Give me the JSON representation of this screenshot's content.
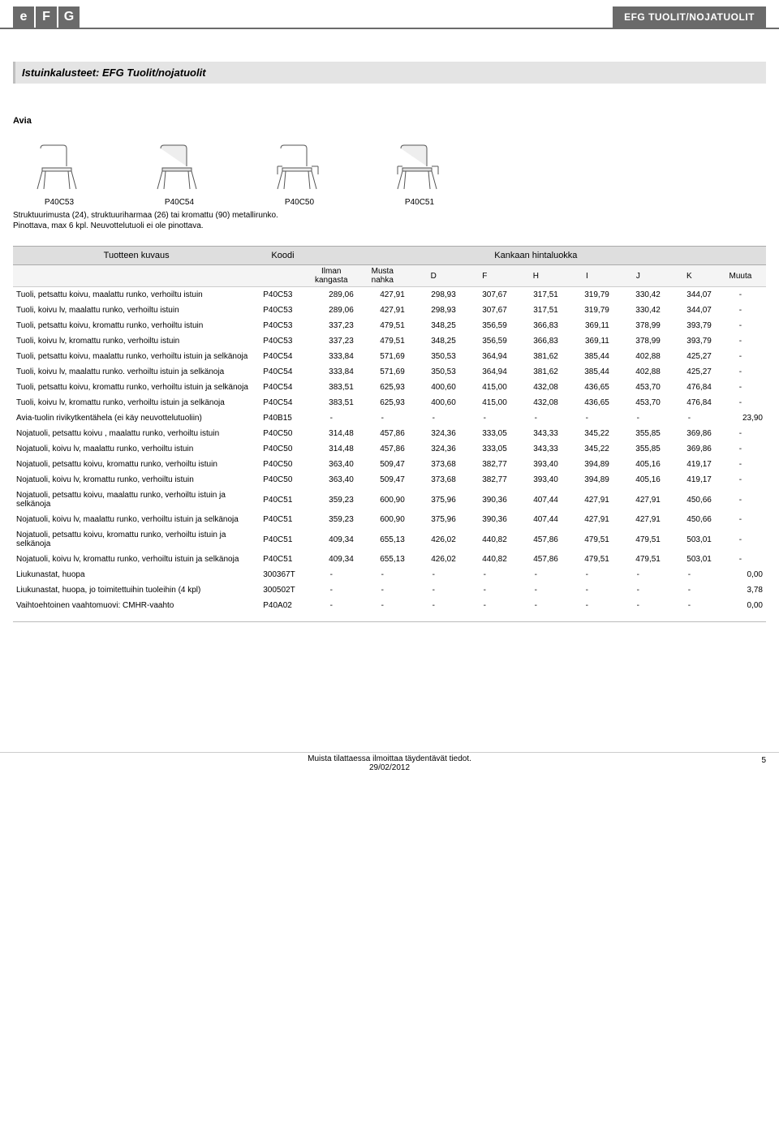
{
  "header": {
    "logo_letters": [
      "e",
      "F",
      "G"
    ],
    "category_label": "EFG TUOLIT/NOJATUOLIT"
  },
  "title": "Istuinkalusteet: EFG Tuolit/nojatuolit",
  "subtitle": "Avia",
  "chair_codes": [
    "P40C53",
    "P40C54",
    "P40C50",
    "P40C51"
  ],
  "note_line1": "Struktuurimusta (24), struktuuriharmaa (26) tai kromattu (90) metallirunko.",
  "note_line2": "Pinottava, max 6 kpl. Neuvottelutuoli ei ole pinottava.",
  "table": {
    "h_desc": "Tuotteen kuvaus",
    "h_code": "Koodi",
    "h_group": "Kankaan hintaluokka",
    "sub": [
      "Ilman kangasta",
      "Musta nahka",
      "D",
      "F",
      "H",
      "I",
      "J",
      "K",
      "Muuta"
    ]
  },
  "rows": [
    {
      "desc": "Tuoli, petsattu koivu, maalattu runko, verhoiltu istuin",
      "code": "P40C53",
      "v": [
        "289,06",
        "427,91",
        "298,93",
        "307,67",
        "317,51",
        "319,79",
        "330,42",
        "344,07",
        "-"
      ]
    },
    {
      "desc": "Tuoli, koivu lv, maalattu runko, verhoiltu istuin",
      "code": "P40C53",
      "v": [
        "289,06",
        "427,91",
        "298,93",
        "307,67",
        "317,51",
        "319,79",
        "330,42",
        "344,07",
        "-"
      ]
    },
    {
      "desc": "Tuoli, petsattu koivu, kromattu runko, verhoiltu istuin",
      "code": "P40C53",
      "v": [
        "337,23",
        "479,51",
        "348,25",
        "356,59",
        "366,83",
        "369,11",
        "378,99",
        "393,79",
        "-"
      ]
    },
    {
      "desc": "Tuoli, koivu lv, kromattu runko, verhoiltu istuin",
      "code": "P40C53",
      "v": [
        "337,23",
        "479,51",
        "348,25",
        "356,59",
        "366,83",
        "369,11",
        "378,99",
        "393,79",
        "-"
      ]
    },
    {
      "desc": "Tuoli, petsattu koivu, maalattu runko, verhoiltu istuin ja selkänoja",
      "code": "P40C54",
      "v": [
        "333,84",
        "571,69",
        "350,53",
        "364,94",
        "381,62",
        "385,44",
        "402,88",
        "425,27",
        "-"
      ]
    },
    {
      "desc": "Tuoli, koivu lv, maalattu runko. verhoiltu istuin ja selkänoja",
      "code": "P40C54",
      "v": [
        "333,84",
        "571,69",
        "350,53",
        "364,94",
        "381,62",
        "385,44",
        "402,88",
        "425,27",
        "-"
      ]
    },
    {
      "desc": "Tuoli, petsattu koivu, kromattu runko, verhoiltu istuin ja selkänoja",
      "code": "P40C54",
      "v": [
        "383,51",
        "625,93",
        "400,60",
        "415,00",
        "432,08",
        "436,65",
        "453,70",
        "476,84",
        "-"
      ]
    },
    {
      "desc": "Tuoli, koivu lv, kromattu runko, verhoiltu istuin ja selkänoja",
      "code": "P40C54",
      "v": [
        "383,51",
        "625,93",
        "400,60",
        "415,00",
        "432,08",
        "436,65",
        "453,70",
        "476,84",
        "-"
      ]
    },
    {
      "desc": "Avia-tuolin rivikytkentähela (ei käy neuvottelutuoliin)",
      "code": "P40B15",
      "v": [
        "-",
        "-",
        "-",
        "-",
        "-",
        "-",
        "-",
        "-",
        "23,90"
      ]
    },
    {
      "desc": "Nojatuoli, petsattu koivu , maalattu runko, verhoiltu istuin",
      "code": "P40C50",
      "v": [
        "314,48",
        "457,86",
        "324,36",
        "333,05",
        "343,33",
        "345,22",
        "355,85",
        "369,86",
        "-"
      ]
    },
    {
      "desc": "Nojatuoli, koivu lv, maalattu runko, verhoiltu istuin",
      "code": "P40C50",
      "v": [
        "314,48",
        "457,86",
        "324,36",
        "333,05",
        "343,33",
        "345,22",
        "355,85",
        "369,86",
        "-"
      ]
    },
    {
      "desc": "Nojatuoli, petsattu koivu, kromattu runko, verhoiltu istuin",
      "code": "P40C50",
      "v": [
        "363,40",
        "509,47",
        "373,68",
        "382,77",
        "393,40",
        "394,89",
        "405,16",
        "419,17",
        "-"
      ]
    },
    {
      "desc": "Nojatuoli, koivu lv, kromattu runko, verhoiltu istuin",
      "code": "P40C50",
      "v": [
        "363,40",
        "509,47",
        "373,68",
        "382,77",
        "393,40",
        "394,89",
        "405,16",
        "419,17",
        "-"
      ]
    },
    {
      "desc": "Nojatuoli, petsattu koivu, maalattu runko, verhoiltu istuin ja selkänoja",
      "code": "P40C51",
      "v": [
        "359,23",
        "600,90",
        "375,96",
        "390,36",
        "407,44",
        "427,91",
        "427,91",
        "450,66",
        "-"
      ]
    },
    {
      "desc": "Nojatuoli, koivu lv, maalattu runko, verhoiltu istuin ja selkänoja",
      "code": "P40C51",
      "v": [
        "359,23",
        "600,90",
        "375,96",
        "390,36",
        "407,44",
        "427,91",
        "427,91",
        "450,66",
        "-"
      ]
    },
    {
      "desc": "Nojatuoli, petsattu koivu, kromattu runko, verhoiltu istuin ja selkänoja",
      "code": "P40C51",
      "v": [
        "409,34",
        "655,13",
        "426,02",
        "440,82",
        "457,86",
        "479,51",
        "479,51",
        "503,01",
        "-"
      ]
    },
    {
      "desc": "Nojatuoli, koivu lv, kromattu runko, verhoiltu istuin ja selkänoja",
      "code": "P40C51",
      "v": [
        "409,34",
        "655,13",
        "426,02",
        "440,82",
        "457,86",
        "479,51",
        "479,51",
        "503,01",
        "-"
      ]
    },
    {
      "desc": "Liukunastat, huopa",
      "code": "300367T",
      "v": [
        "-",
        "-",
        "-",
        "-",
        "-",
        "-",
        "-",
        "-",
        "0,00"
      ]
    },
    {
      "desc": "Liukunastat, huopa, jo toimitettuihin tuoleihin (4 kpl)",
      "code": "300502T",
      "v": [
        "-",
        "-",
        "-",
        "-",
        "-",
        "-",
        "-",
        "-",
        "3,78"
      ]
    },
    {
      "desc": "Vaihtoehtoinen vaahtomuovi: CMHR-vaahto",
      "code": "P40A02",
      "v": [
        "-",
        "-",
        "-",
        "-",
        "-",
        "-",
        "-",
        "-",
        "0,00"
      ]
    }
  ],
  "footer": {
    "note": "Muista tilattaessa ilmoittaa täydentävät tiedot.",
    "date": "29/02/2012",
    "page": "5"
  }
}
